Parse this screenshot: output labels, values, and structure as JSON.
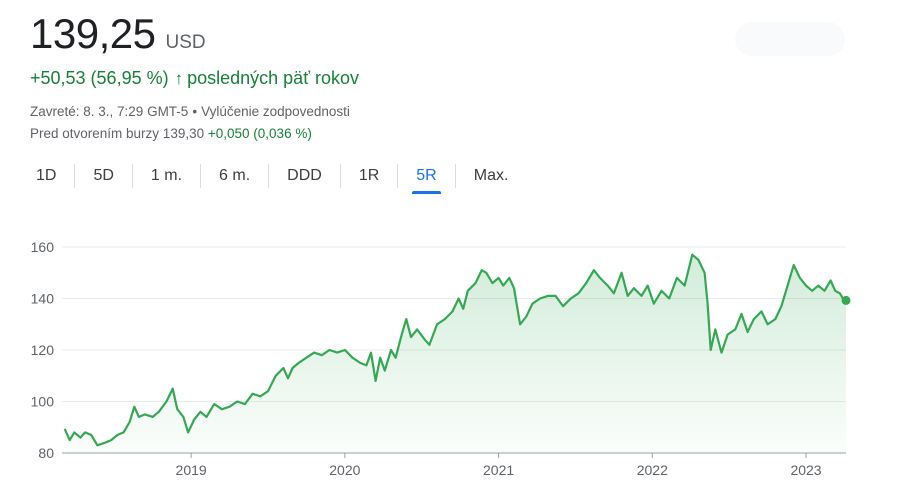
{
  "quote": {
    "price": "139,25",
    "currency": "USD",
    "change": "+50,53 (56,95 %)",
    "change_arrow": "↑",
    "period_text": "posledných päť rokov",
    "closed_text": "Zavreté: 8. 3., 7:29 GMT-5",
    "separator": "•",
    "disclaimer": "Vylúčenie zodpovednosti",
    "premarket_label": "Pred otvorením burzy 139,30",
    "premarket_change": "+0,050 (0,036 %)"
  },
  "tabs": [
    {
      "label": "1D",
      "active": false
    },
    {
      "label": "5D",
      "active": false
    },
    {
      "label": "1 m.",
      "active": false
    },
    {
      "label": "6 m.",
      "active": false
    },
    {
      "label": "DDD",
      "active": false
    },
    {
      "label": "1R",
      "active": false
    },
    {
      "label": "5R",
      "active": true
    },
    {
      "label": "Max.",
      "active": false
    }
  ],
  "colors": {
    "line": "#34a853",
    "fill": "#34a853",
    "positive": "#188038",
    "active_tab": "#1a73e8"
  },
  "chart_data": {
    "type": "area",
    "y_ticks": [
      "160",
      "140",
      "120",
      "100",
      "80"
    ],
    "x_ticks": [
      "2019",
      "2020",
      "2021",
      "2022",
      "2023"
    ],
    "ylim": [
      80,
      160
    ],
    "grid": true,
    "series": [
      {
        "values": [
          [
            2018.18,
            89
          ],
          [
            2018.21,
            85
          ],
          [
            2018.24,
            88
          ],
          [
            2018.28,
            86
          ],
          [
            2018.31,
            88
          ],
          [
            2018.35,
            87
          ],
          [
            2018.39,
            83
          ],
          [
            2018.44,
            84
          ],
          [
            2018.48,
            85
          ],
          [
            2018.52,
            87
          ],
          [
            2018.56,
            88
          ],
          [
            2018.6,
            92
          ],
          [
            2018.63,
            98
          ],
          [
            2018.66,
            94
          ],
          [
            2018.7,
            95
          ],
          [
            2018.75,
            94
          ],
          [
            2018.79,
            96
          ],
          [
            2018.84,
            100
          ],
          [
            2018.88,
            105
          ],
          [
            2018.91,
            97
          ],
          [
            2018.95,
            94
          ],
          [
            2018.98,
            88
          ],
          [
            2019.02,
            93
          ],
          [
            2019.06,
            96
          ],
          [
            2019.1,
            94
          ],
          [
            2019.15,
            99
          ],
          [
            2019.2,
            97
          ],
          [
            2019.25,
            98
          ],
          [
            2019.3,
            100
          ],
          [
            2019.35,
            99
          ],
          [
            2019.4,
            103
          ],
          [
            2019.45,
            102
          ],
          [
            2019.5,
            104
          ],
          [
            2019.55,
            110
          ],
          [
            2019.6,
            113
          ],
          [
            2019.63,
            109
          ],
          [
            2019.66,
            113
          ],
          [
            2019.7,
            115
          ],
          [
            2019.75,
            117
          ],
          [
            2019.8,
            119
          ],
          [
            2019.85,
            118
          ],
          [
            2019.9,
            120
          ],
          [
            2019.95,
            119
          ],
          [
            2020.0,
            120
          ],
          [
            2020.05,
            117
          ],
          [
            2020.1,
            115
          ],
          [
            2020.14,
            114
          ],
          [
            2020.17,
            119
          ],
          [
            2020.2,
            108
          ],
          [
            2020.23,
            117
          ],
          [
            2020.26,
            112
          ],
          [
            2020.3,
            120
          ],
          [
            2020.33,
            117
          ],
          [
            2020.37,
            126
          ],
          [
            2020.4,
            132
          ],
          [
            2020.43,
            125
          ],
          [
            2020.47,
            128
          ],
          [
            2020.52,
            124
          ],
          [
            2020.55,
            122
          ],
          [
            2020.6,
            130
          ],
          [
            2020.65,
            132
          ],
          [
            2020.7,
            135
          ],
          [
            2020.74,
            140
          ],
          [
            2020.77,
            136
          ],
          [
            2020.8,
            143
          ],
          [
            2020.85,
            146
          ],
          [
            2020.89,
            151
          ],
          [
            2020.92,
            150
          ],
          [
            2020.96,
            146
          ],
          [
            2021.0,
            148
          ],
          [
            2021.03,
            145
          ],
          [
            2021.07,
            148
          ],
          [
            2021.1,
            144
          ],
          [
            2021.14,
            130
          ],
          [
            2021.18,
            133
          ],
          [
            2021.22,
            138
          ],
          [
            2021.27,
            140
          ],
          [
            2021.32,
            141
          ],
          [
            2021.37,
            141
          ],
          [
            2021.42,
            137
          ],
          [
            2021.47,
            140
          ],
          [
            2021.52,
            142
          ],
          [
            2021.57,
            146
          ],
          [
            2021.62,
            151
          ],
          [
            2021.66,
            148
          ],
          [
            2021.71,
            145
          ],
          [
            2021.75,
            142
          ],
          [
            2021.8,
            150
          ],
          [
            2021.84,
            141
          ],
          [
            2021.88,
            144
          ],
          [
            2021.93,
            141
          ],
          [
            2021.97,
            145
          ],
          [
            2022.01,
            138
          ],
          [
            2022.06,
            143
          ],
          [
            2022.11,
            140
          ],
          [
            2022.16,
            148
          ],
          [
            2022.21,
            145
          ],
          [
            2022.26,
            157
          ],
          [
            2022.3,
            155
          ],
          [
            2022.34,
            150
          ],
          [
            2022.36,
            138
          ],
          [
            2022.38,
            120
          ],
          [
            2022.41,
            128
          ],
          [
            2022.45,
            119
          ],
          [
            2022.49,
            126
          ],
          [
            2022.54,
            128
          ],
          [
            2022.58,
            134
          ],
          [
            2022.62,
            127
          ],
          [
            2022.66,
            132
          ],
          [
            2022.71,
            135
          ],
          [
            2022.75,
            130
          ],
          [
            2022.8,
            132
          ],
          [
            2022.84,
            137
          ],
          [
            2022.88,
            145
          ],
          [
            2022.92,
            153
          ],
          [
            2022.96,
            148
          ],
          [
            2023.0,
            145
          ],
          [
            2023.04,
            143
          ],
          [
            2023.08,
            145
          ],
          [
            2023.12,
            143
          ],
          [
            2023.16,
            147
          ],
          [
            2023.19,
            143
          ],
          [
            2023.22,
            142
          ],
          [
            2023.24,
            140
          ],
          [
            2023.26,
            139.25
          ]
        ]
      }
    ]
  }
}
